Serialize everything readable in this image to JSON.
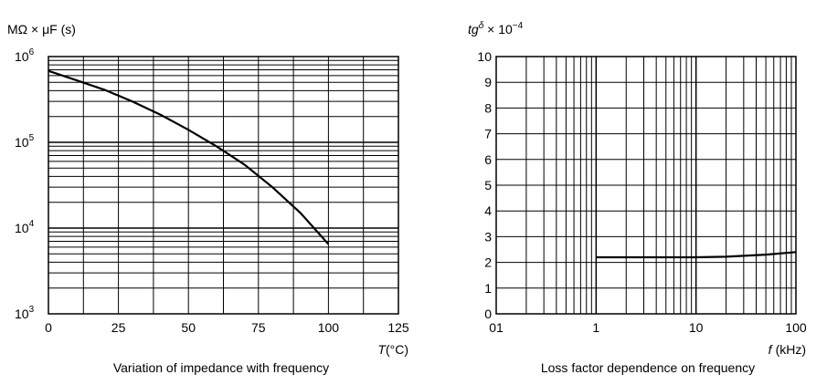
{
  "chart_data": [
    {
      "type": "line",
      "title": "Variation of impedance with frequency",
      "ylabel": "MΩ × μF (s)",
      "xlabel_var": "T",
      "xlabel_unit": "(°C)",
      "xlim": [
        0,
        125
      ],
      "x_ticks": [
        "0",
        "25",
        "50",
        "75",
        "100",
        "125"
      ],
      "y_scale": "log",
      "ylim": [
        1000,
        1000000
      ],
      "y_ticks": [
        {
          "base": "10",
          "exp": "3"
        },
        {
          "base": "10",
          "exp": "4"
        },
        {
          "base": "10",
          "exp": "5"
        },
        {
          "base": "10",
          "exp": "6"
        }
      ],
      "grid": true,
      "series": [
        {
          "x": [
            0,
            10,
            20,
            30,
            40,
            50,
            60,
            70,
            80,
            90,
            100
          ],
          "y": [
            680000,
            530000,
            410000,
            300000,
            210000,
            140000,
            90000,
            55000,
            30000,
            15000,
            6500
          ]
        }
      ]
    },
    {
      "type": "line",
      "title": "Loss factor dependence on frequency",
      "ylabel_var": "tg",
      "ylabel_sup": "δ",
      "ylabel_rest": " × 10",
      "ylabel_exp": "−4",
      "xlabel_var": "f",
      "xlabel_unit": "(kHz)",
      "x_scale": "log",
      "xlim": [
        0.1,
        100
      ],
      "x_ticks": [
        "01",
        "1",
        "10",
        "100"
      ],
      "ylim": [
        0,
        10
      ],
      "y_ticks": [
        "0",
        "1",
        "2",
        "3",
        "4",
        "5",
        "6",
        "7",
        "8",
        "9",
        "10"
      ],
      "grid": true,
      "series": [
        {
          "x": [
            1,
            2,
            5,
            10,
            20,
            50,
            100
          ],
          "y": [
            2.2,
            2.2,
            2.2,
            2.2,
            2.22,
            2.3,
            2.4
          ]
        }
      ]
    }
  ]
}
